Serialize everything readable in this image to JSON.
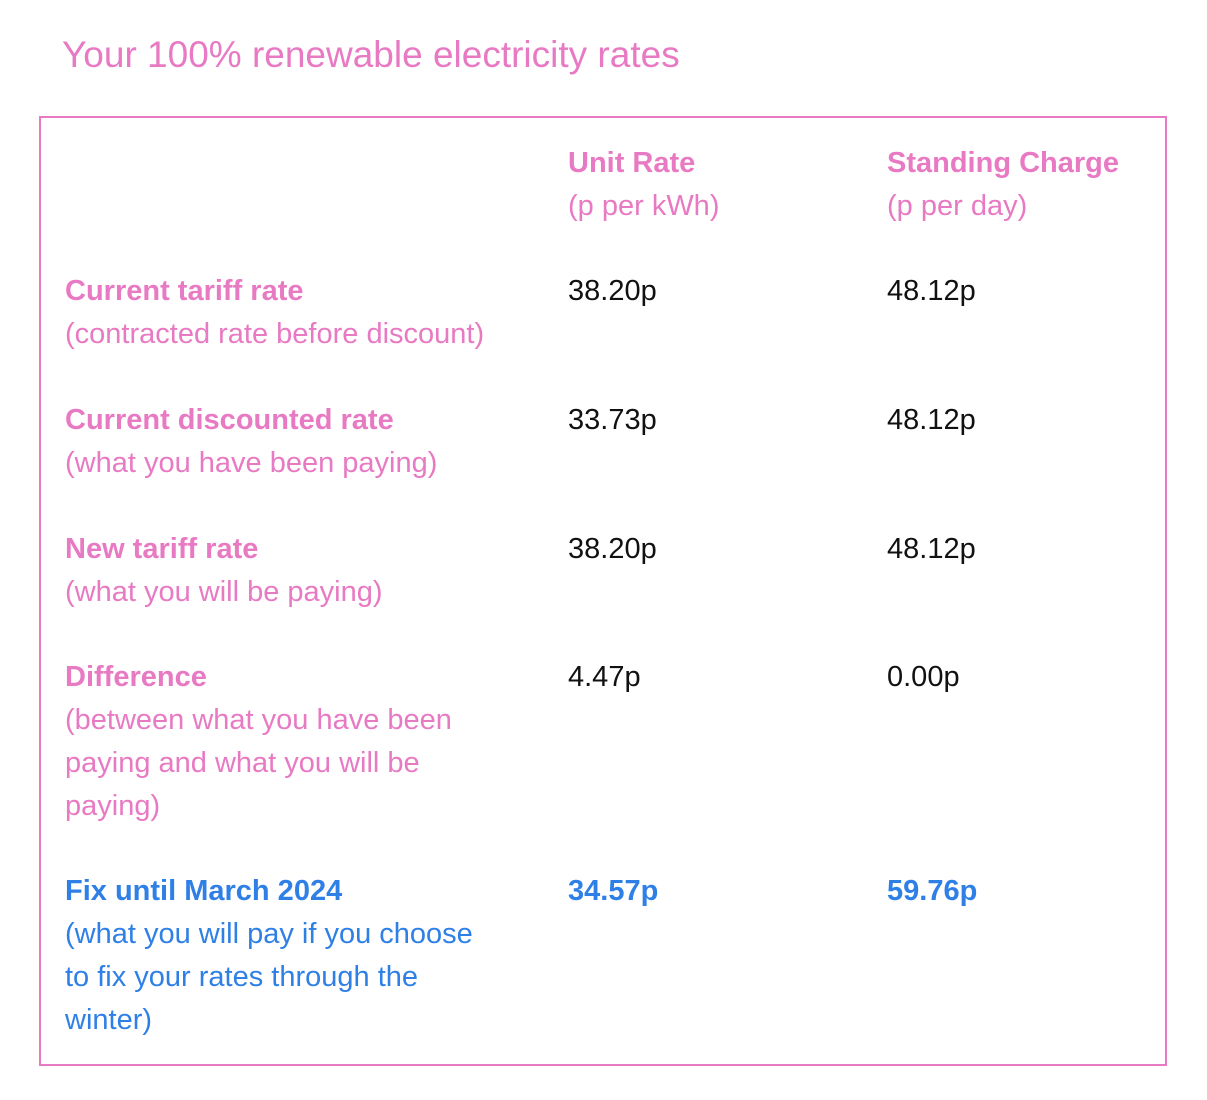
{
  "page": {
    "title": "Your 100% renewable electricity rates"
  },
  "table": {
    "headers": [
      {
        "label": "Unit Rate",
        "unit": "(p per kWh)"
      },
      {
        "label": "Standing Charge",
        "unit": "(p per day)"
      }
    ],
    "rows": [
      {
        "label": "Current tariff rate",
        "desc_lines": [
          "(contracted rate before discount)"
        ],
        "unit_rate": "38.20p",
        "standing_charge": "48.12p"
      },
      {
        "label": "Current discounted rate",
        "desc_lines": [
          "(what you have been paying)"
        ],
        "unit_rate": "33.73p",
        "standing_charge": "48.12p"
      },
      {
        "label": "New tariff rate",
        "desc_lines": [
          "(what you will be paying)"
        ],
        "unit_rate": "38.20p",
        "standing_charge": "48.12p"
      },
      {
        "label": "Difference",
        "desc_lines": [
          "(between what you have been",
          "paying and what you will be",
          "paying)"
        ],
        "unit_rate": "4.47p",
        "standing_charge": "0.00p"
      },
      {
        "label": "Fix until March 2024",
        "desc_lines": [
          "(what you will pay if you choose",
          "to fix your rates through the",
          "winter)"
        ],
        "unit_rate": "34.57p",
        "standing_charge": "59.76p"
      }
    ]
  },
  "colors": {
    "accent_pink": "#e879c3",
    "accent_blue": "#2f80e6",
    "value_text": "#111111"
  }
}
